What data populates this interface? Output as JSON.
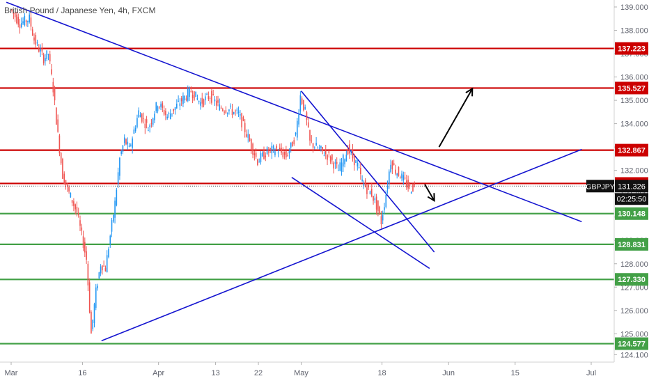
{
  "symbol_title": "British Pound / Japanese Yen, 4h, FXCM",
  "chart_data": {
    "type": "line",
    "title": "British Pound / Japanese Yen, 4h, FXCM",
    "xlabel": "",
    "ylabel": "",
    "ylim": [
      123.9,
      139.3
    ],
    "y_ticks": [
      "139.000",
      "138.000",
      "137.000",
      "136.000",
      "135.000",
      "134.000",
      "133.000",
      "132.000",
      "131.000",
      "130.000",
      "129.000",
      "128.000",
      "127.000",
      "126.000",
      "125.000",
      "124.100"
    ],
    "x_ticks": [
      {
        "label": "Mar",
        "x": "Mar 1"
      },
      {
        "label": "16",
        "x": "Mar 16"
      },
      {
        "label": "Apr",
        "x": "Apr 1"
      },
      {
        "label": "13",
        "x": "Apr 13"
      },
      {
        "label": "22",
        "x": "Apr 22"
      },
      {
        "label": "May",
        "x": "May 1"
      },
      {
        "label": "18",
        "x": "May 18"
      },
      {
        "label": "Jun",
        "x": "Jun 1"
      },
      {
        "label": "15",
        "x": "Jun 15"
      },
      {
        "label": "Jul",
        "x": "Jul 1"
      }
    ],
    "horizontal_levels": [
      {
        "value": 137.223,
        "label": "137.223",
        "color": "#cc0000"
      },
      {
        "value": 135.527,
        "label": "135.527",
        "color": "#cc0000"
      },
      {
        "value": 132.867,
        "label": "132.867",
        "color": "#cc0000"
      },
      {
        "value": 131.44,
        "label": "131.440",
        "color": "#cc0000"
      },
      {
        "value": 130.148,
        "label": "130.148",
        "color": "#43a047"
      },
      {
        "value": 128.831,
        "label": "128.831",
        "color": "#43a047"
      },
      {
        "value": 127.33,
        "label": "127.330",
        "color": "#43a047"
      },
      {
        "value": 124.577,
        "label": "124.577",
        "color": "#43a047"
      }
    ],
    "current_price": {
      "symbol": "GBPJPY",
      "value": "131.326",
      "countdown": "02:25:50",
      "price": 131.326
    },
    "price_path": {
      "x": [
        "Mar 1",
        "Mar 3",
        "Mar 5",
        "Mar 6",
        "Mar 8",
        "Mar 9",
        "Mar 10",
        "Mar 11",
        "Mar 12",
        "Mar 13",
        "Mar 15",
        "Mar 17",
        "Mar 18",
        "Mar 19",
        "Mar 20",
        "Mar 21",
        "Mar 23",
        "Mar 24",
        "Mar 25",
        "Mar 26",
        "Mar 28",
        "Mar 30",
        "Apr 1",
        "Apr 3",
        "Apr 6",
        "Apr 8",
        "Apr 10",
        "Apr 12",
        "Apr 14",
        "Apr 16",
        "Apr 18",
        "Apr 20",
        "Apr 22",
        "Apr 24",
        "Apr 26",
        "Apr 28",
        "Apr 29",
        "Apr 30",
        "May 1",
        "May 2",
        "May 3",
        "May 5",
        "May 7",
        "May 9",
        "May 11",
        "May 13",
        "May 14",
        "May 15",
        "May 16",
        "May 17",
        "May 18",
        "May 19",
        "May 20",
        "May 21",
        "May 22",
        "May 23",
        "May 24",
        "May 25"
      ],
      "values": [
        138.9,
        138.3,
        138.5,
        137.6,
        136.8,
        137.0,
        135.5,
        133.5,
        131.8,
        131.2,
        130.2,
        128.2,
        125.0,
        126.8,
        128.0,
        127.8,
        130.6,
        132.5,
        133.3,
        132.9,
        134.5,
        133.8,
        134.9,
        134.3,
        135.0,
        135.4,
        134.9,
        135.2,
        134.7,
        134.6,
        134.4,
        133.4,
        132.4,
        132.8,
        132.9,
        132.6,
        133.0,
        133.5,
        135.2,
        134.5,
        133.2,
        132.9,
        132.6,
        132.0,
        132.9,
        132.2,
        131.5,
        131.2,
        131.0,
        130.5,
        129.8,
        131.0,
        132.4,
        132.0,
        131.8,
        131.5,
        131.2,
        131.326
      ],
      "color": "#2196f3",
      "bearish_color": "#ef5350"
    },
    "trendlines": [
      {
        "from": {
          "x": "Feb 29",
          "y": 139.2
        },
        "to": {
          "x": "Jun 29",
          "y": 129.8
        },
        "color": "#1515d0"
      },
      {
        "from": {
          "x": "Mar 20",
          "y": 124.7
        },
        "to": {
          "x": "Jun 29",
          "y": 132.9
        },
        "color": "#1515d0"
      },
      {
        "from": {
          "x": "May 1",
          "y": 135.4
        },
        "to": {
          "x": "May 29",
          "y": 128.5
        },
        "color": "#1515d0"
      },
      {
        "from": {
          "x": "Apr 29",
          "y": 131.7
        },
        "to": {
          "x": "May 28",
          "y": 127.8
        },
        "color": "#1515d0"
      }
    ],
    "arrows": [
      {
        "from": {
          "x": "May 30",
          "y": 133.0
        },
        "to": {
          "x": "Jun 6",
          "y": 135.5
        },
        "color": "#000000"
      },
      {
        "from": {
          "x": "May 27",
          "y": 131.4
        },
        "to": {
          "x": "May 29",
          "y": 130.7
        },
        "color": "#000000"
      }
    ],
    "axis_label_color": "#5d606b",
    "up_color": "#2196f3",
    "down_color": "#ef5350"
  }
}
